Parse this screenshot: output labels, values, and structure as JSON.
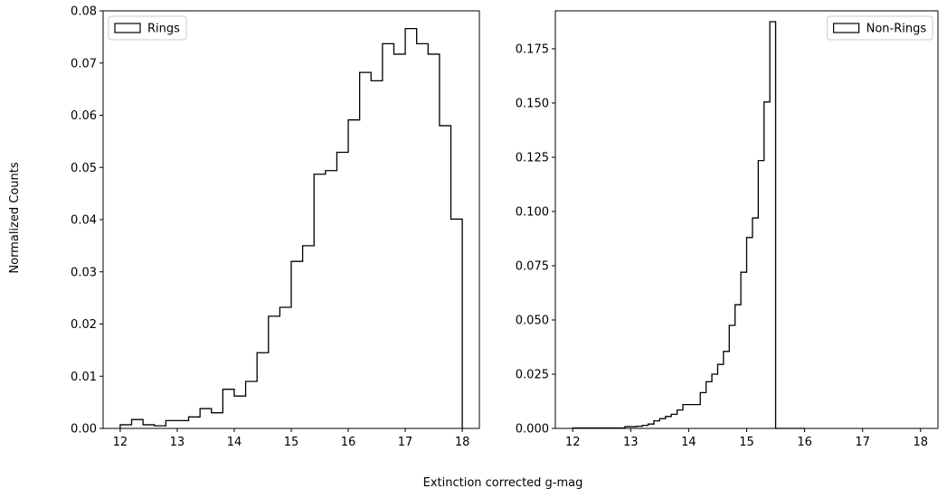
{
  "figure": {
    "xlabel": "Extinction corrected g-mag",
    "ylabel": "Normalized Counts"
  },
  "chart_data": [
    {
      "type": "histogram",
      "style": "step",
      "color": "#000000",
      "legend": {
        "label": "Rings",
        "position": "upper-left"
      },
      "xlim": [
        11.7,
        18.3
      ],
      "ylim": [
        0,
        0.08
      ],
      "xticks": [
        12,
        13,
        14,
        15,
        16,
        17,
        18
      ],
      "yticks": [
        0.0,
        0.01,
        0.02,
        0.03,
        0.04,
        0.05,
        0.06,
        0.07,
        0.08
      ],
      "ytick_labels": [
        "0.00",
        "0.01",
        "0.02",
        "0.03",
        "0.04",
        "0.05",
        "0.06",
        "0.07",
        "0.08"
      ],
      "bin_edges": [
        12.0,
        12.2,
        12.4,
        12.6,
        12.8,
        13.0,
        13.2,
        13.4,
        13.6,
        13.8,
        14.0,
        14.2,
        14.4,
        14.6,
        14.8,
        15.0,
        15.2,
        15.4,
        15.6,
        15.8,
        16.0,
        16.2,
        16.4,
        16.6,
        16.8,
        17.0,
        17.2,
        17.4,
        17.6,
        17.8,
        18.0
      ],
      "values": [
        0.0007,
        0.0017,
        0.0007,
        0.0005,
        0.0015,
        0.0015,
        0.0022,
        0.0038,
        0.003,
        0.0075,
        0.0062,
        0.009,
        0.0145,
        0.0215,
        0.0232,
        0.032,
        0.035,
        0.0487,
        0.0494,
        0.0529,
        0.0591,
        0.0682,
        0.0666,
        0.0737,
        0.0717,
        0.0766,
        0.0737,
        0.0717,
        0.058,
        0.0401
      ]
    },
    {
      "type": "histogram",
      "style": "step",
      "color": "#000000",
      "legend": {
        "label": "Non-Rings",
        "position": "upper-right"
      },
      "xlim": [
        11.7,
        18.3
      ],
      "ylim": [
        0,
        0.1925
      ],
      "xticks": [
        12,
        13,
        14,
        15,
        16,
        17,
        18
      ],
      "yticks": [
        0.0,
        0.025,
        0.05,
        0.075,
        0.1,
        0.125,
        0.15,
        0.175
      ],
      "ytick_labels": [
        "0.000",
        "0.025",
        "0.050",
        "0.075",
        "0.100",
        "0.125",
        "0.150",
        "0.175"
      ],
      "bin_edges": [
        12.0,
        12.1,
        12.2,
        12.3,
        12.4,
        12.5,
        12.6,
        12.7,
        12.8,
        12.9,
        13.0,
        13.1,
        13.2,
        13.3,
        13.4,
        13.5,
        13.6,
        13.7,
        13.8,
        13.9,
        14.0,
        14.1,
        14.2,
        14.3,
        14.4,
        14.5,
        14.6,
        14.7,
        14.8,
        14.9,
        15.0,
        15.1,
        15.2,
        15.3,
        15.4,
        15.5,
        15.6,
        15.7,
        15.8,
        15.9,
        16.0
      ],
      "values": [
        0.0002,
        0.0002,
        0.0002,
        0.0002,
        0.0002,
        0.0002,
        0.0002,
        0.0002,
        0.0002,
        0.0008,
        0.0008,
        0.001,
        0.0014,
        0.002,
        0.0035,
        0.0045,
        0.0055,
        0.0065,
        0.0085,
        0.011,
        0.011,
        0.011,
        0.0165,
        0.0215,
        0.025,
        0.0295,
        0.0355,
        0.0475,
        0.057,
        0.072,
        0.088,
        0.097,
        0.1235,
        0.1505,
        0.1875,
        0.0,
        0.0,
        0.0,
        0.0,
        0.0
      ]
    }
  ]
}
